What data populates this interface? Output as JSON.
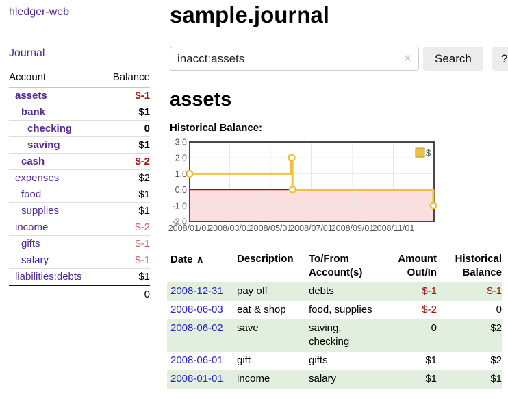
{
  "app": {
    "title": "hledger-web"
  },
  "nav": {
    "journal": "Journal"
  },
  "accounts_panel": {
    "col_account": "Account",
    "col_balance": "Balance",
    "rows": [
      {
        "name": "assets",
        "level": 1,
        "bold": true,
        "link_color": "purple",
        "balance": "$-1",
        "balance_class": "b-neg"
      },
      {
        "name": "bank",
        "level": 2,
        "bold": true,
        "link_color": "purple",
        "balance": "$1",
        "balance_class": "b-pos"
      },
      {
        "name": "checking",
        "level": 3,
        "bold": true,
        "link_color": "purple",
        "balance": "0",
        "balance_class": "b-pos"
      },
      {
        "name": "saving",
        "level": 3,
        "bold": true,
        "link_color": "purple",
        "balance": "$1",
        "balance_class": "b-pos"
      },
      {
        "name": "cash",
        "level": 2,
        "bold": true,
        "link_color": "purple",
        "balance": "$-2",
        "balance_class": "b-neg"
      },
      {
        "name": "expenses",
        "level": 1,
        "bold": false,
        "link_color": "purple",
        "balance": "$2",
        "balance_class": "b-pos"
      },
      {
        "name": "food",
        "level": 2,
        "bold": false,
        "link_color": "purple",
        "balance": "$1",
        "balance_class": "b-pos"
      },
      {
        "name": "supplies",
        "level": 2,
        "bold": false,
        "link_color": "purple",
        "balance": "$1",
        "balance_class": "b-pos"
      },
      {
        "name": "income",
        "level": 1,
        "bold": false,
        "link_color": "purple",
        "balance": "$-2",
        "balance_class": "b-negm"
      },
      {
        "name": "gifts",
        "level": 2,
        "bold": false,
        "link_color": "purple",
        "balance": "$-1",
        "balance_class": "b-negm"
      },
      {
        "name": "salary",
        "level": 2,
        "bold": false,
        "link_color": "blue",
        "balance": "$-1",
        "balance_class": "b-negm"
      },
      {
        "name": "liabilities:debts",
        "level": 1,
        "bold": false,
        "link_color": "purple",
        "balance": "$1",
        "balance_class": "b-pos"
      }
    ],
    "total": "0"
  },
  "header": {
    "journal_title": "sample.journal"
  },
  "search": {
    "query": "inacct:assets",
    "clear_icon": "✕",
    "search_label": "Search",
    "help_label": "?"
  },
  "account_page": {
    "title": "assets",
    "chart_label": "Historical Balance:"
  },
  "chart_data": {
    "type": "line",
    "title": "Historical Balance",
    "steps": true,
    "series": [
      {
        "name": "$",
        "color": "#edc240",
        "points": [
          [
            "2008-01-01",
            1
          ],
          [
            "2008-06-01",
            2
          ],
          [
            "2008-06-02",
            2
          ],
          [
            "2008-06-03",
            0
          ],
          [
            "2008-12-31",
            -1
          ]
        ]
      }
    ],
    "xlim": [
      "2008-01-01",
      "2009-01-01"
    ],
    "ylim": [
      -2,
      3
    ],
    "yticks": [
      {
        "v": 3,
        "label": "3.0"
      },
      {
        "v": 2,
        "label": "2.0"
      },
      {
        "v": 1,
        "label": "1.0"
      },
      {
        "v": 0,
        "label": "0.0"
      },
      {
        "v": -1,
        "label": "-1.0"
      },
      {
        "v": -2,
        "label": "-2.0"
      }
    ],
    "xticks": [
      {
        "date": "2008-01-01",
        "label": "2008/01/01"
      },
      {
        "date": "2008-03-01",
        "label": "2008/03/01"
      },
      {
        "date": "2008-05-01",
        "label": "2008/05/01"
      },
      {
        "date": "2008-07-01",
        "label": "2008/07/01"
      },
      {
        "date": "2008-09-01",
        "label": "2008/09/01"
      },
      {
        "date": "2008-11-01",
        "label": "2008/11/01"
      }
    ],
    "grid": true,
    "legend_position": "top-right",
    "negative_region_color": "#fbdede",
    "zero_line_color": "#8b1a1a",
    "grid_color": "#e6e6e6",
    "border_color": "#474747",
    "tick_color": "#545454"
  },
  "register": {
    "columns": [
      {
        "label": "Date"
      },
      {
        "label": "Description"
      },
      {
        "label": "To/From Account(s)"
      },
      {
        "label": "Amount Out/In"
      },
      {
        "label": "Historical Balance"
      }
    ],
    "sort_icon": "∧",
    "rows": [
      {
        "date": "2008-12-31",
        "description": "pay off",
        "accounts": "debts",
        "amount": "$-1",
        "amount_neg": true,
        "balance": "$-1",
        "balance_neg": true
      },
      {
        "date": "2008-06-03",
        "description": "eat & shop",
        "accounts": "food, supplies",
        "amount": "$-2",
        "amount_neg": true,
        "balance": "0",
        "balance_neg": false
      },
      {
        "date": "2008-06-02",
        "description": "save",
        "accounts": "saving, checking",
        "amount": "0",
        "amount_neg": false,
        "balance": "$2",
        "balance_neg": false
      },
      {
        "date": "2008-06-01",
        "description": "gift",
        "accounts": "gifts",
        "amount": "$1",
        "amount_neg": false,
        "balance": "$2",
        "balance_neg": false
      },
      {
        "date": "2008-01-01",
        "description": "income",
        "accounts": "salary",
        "amount": "$1",
        "amount_neg": false,
        "balance": "$1",
        "balance_neg": false
      }
    ]
  },
  "colors": {
    "accent_purple": "#50289b",
    "link_blue": "#2424cc",
    "negative": "#a11313",
    "negative_muted": "#bb6363",
    "row_green": "#e2efdf",
    "series_gold": "#edc240"
  }
}
